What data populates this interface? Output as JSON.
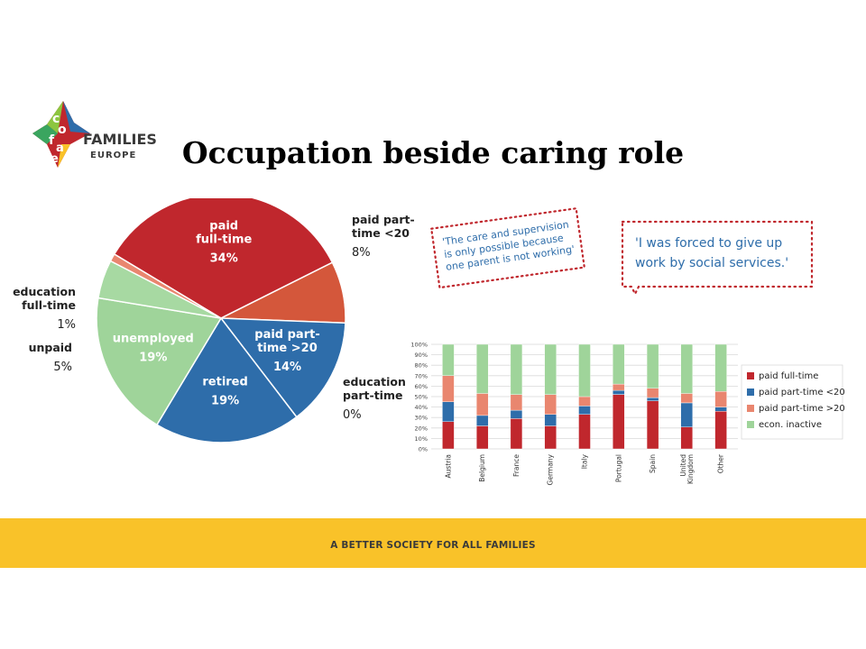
{
  "logo": {
    "letters": [
      "c",
      "o",
      "f",
      "a",
      "c",
      "e"
    ],
    "name": "FAMILIES",
    "region": "EUROPE"
  },
  "title": "Occupation beside caring role",
  "quotes": [
    {
      "lines": [
        "'The care and supervision",
        "is only possible because",
        "one parent is not working'"
      ]
    },
    {
      "lines": [
        "'I was forced to give up",
        "work by social services.'"
      ]
    }
  ],
  "footer": "A BETTER SOCIETY FOR ALL FAMILIES",
  "colors": {
    "red": "#c0272d",
    "orange": "#d4573b",
    "blue": "#2e6daa",
    "salmon": "#e9866f",
    "green": "#9fd49a",
    "green_light": "#a7d9a2",
    "yellow": "#f9c229"
  },
  "chart_data": [
    {
      "type": "pie",
      "slices": [
        {
          "label_lines": [
            "paid",
            "full-time"
          ],
          "value": 34,
          "pct": "34%",
          "label_pos": "inside"
        },
        {
          "label_lines": [
            "paid part-",
            "time <20"
          ],
          "value": 8,
          "pct": "8%",
          "label_pos": "outside"
        },
        {
          "label_lines": [
            "paid part-",
            "time >20"
          ],
          "value": 14,
          "pct": "14%",
          "label_pos": "inside"
        },
        {
          "label_lines": [
            "education",
            "part-time"
          ],
          "value": 0,
          "pct": "0%",
          "label_pos": "outside"
        },
        {
          "label_lines": [
            "retired"
          ],
          "value": 19,
          "pct": "19%",
          "label_pos": "inside"
        },
        {
          "label_lines": [
            "unemployed"
          ],
          "value": 19,
          "pct": "19%",
          "label_pos": "inside"
        },
        {
          "label_lines": [
            "unpaid"
          ],
          "value": 5,
          "pct": "5%",
          "label_pos": "outside"
        },
        {
          "label_lines": [
            "education",
            "full-time"
          ],
          "value": 1,
          "pct": "1%",
          "label_pos": "outside"
        }
      ]
    },
    {
      "type": "bar",
      "stacked": true,
      "categories": [
        "Austria",
        "Belgium",
        "France",
        "Germany",
        "Italy",
        "Portugal",
        "Spain",
        "United Kingdom",
        "Other"
      ],
      "ylim": [
        0,
        100
      ],
      "yticks": [
        "0%",
        "10%",
        "20%",
        "30%",
        "40%",
        "50%",
        "60%",
        "70%",
        "80%",
        "90%",
        "100%"
      ],
      "grid": true,
      "legend": "right",
      "series": [
        {
          "name": "paid full-time",
          "values": [
            26,
            22,
            29,
            22,
            33,
            52,
            46,
            21,
            36
          ]
        },
        {
          "name": "paid part-time <20",
          "values": [
            19,
            10,
            8,
            11,
            8,
            4,
            3,
            23,
            4
          ]
        },
        {
          "name": "paid part-time >20",
          "values": [
            25,
            21,
            15,
            19,
            9,
            6,
            9,
            9,
            15
          ]
        },
        {
          "name": "econ. inactive",
          "values": [
            30,
            47,
            48,
            48,
            50,
            38,
            42,
            47,
            45
          ]
        }
      ]
    }
  ]
}
